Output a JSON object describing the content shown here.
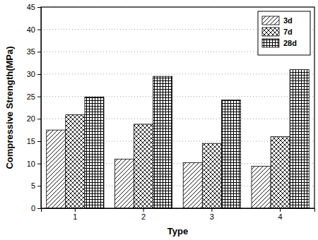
{
  "chart_data": {
    "type": "bar",
    "x_label": "Type",
    "y_label": "Compressive Strength(MPa)",
    "categories": [
      "1",
      "2",
      "3",
      "4"
    ],
    "series": [
      {
        "name": "3d",
        "color": "#000000",
        "values": [
          17.5,
          11.0,
          10.2,
          9.4
        ]
      },
      {
        "name": "7d",
        "color": "#000000",
        "values": [
          20.9,
          18.8,
          14.5,
          16.0
        ]
      },
      {
        "name": "28d",
        "color": "#000000",
        "values": [
          24.9,
          29.5,
          24.2,
          31.0
        ]
      }
    ],
    "ylim": [
      0,
      45
    ],
    "yticks": [
      0,
      5,
      10,
      15,
      20,
      25,
      30,
      35,
      40,
      45
    ],
    "grid": true,
    "legend": "upper right"
  }
}
